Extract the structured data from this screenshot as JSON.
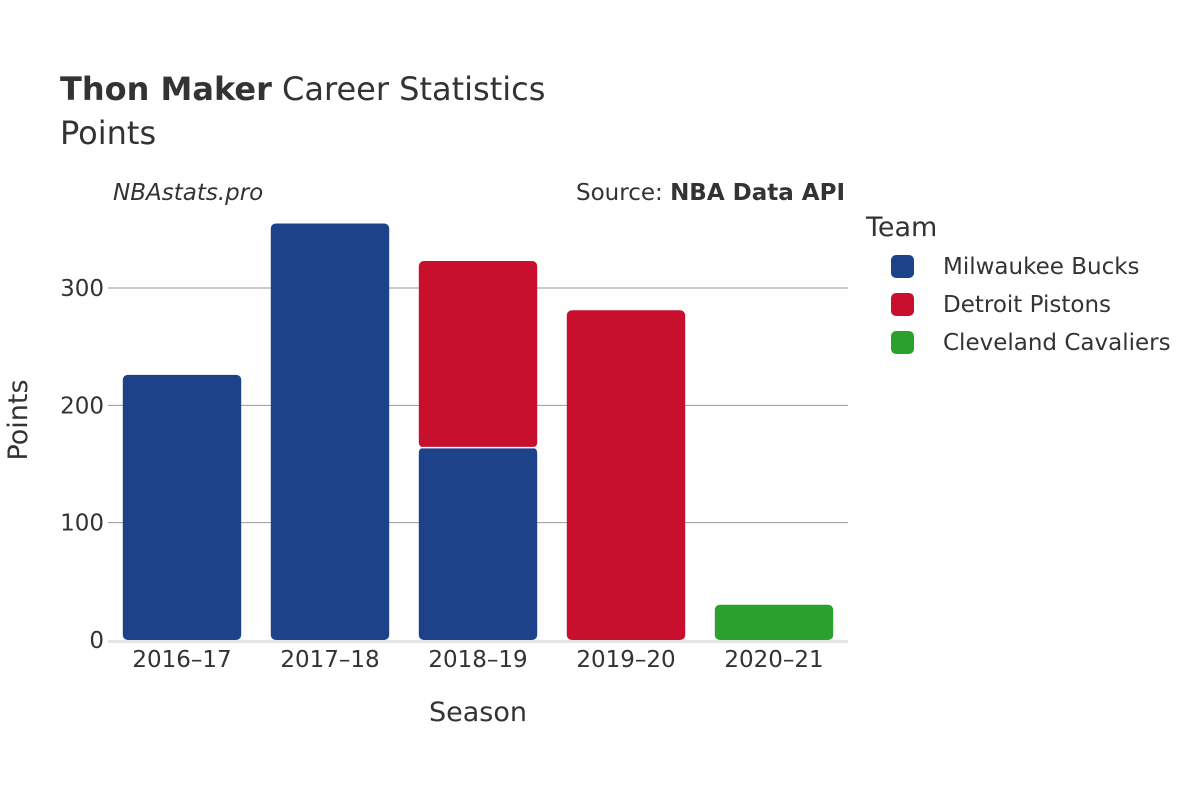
{
  "header": {
    "player_name": "Thon Maker",
    "title_rest": " Career Statistics",
    "subtitle": "Points",
    "watermark": "NBAstats.pro",
    "source_prefix": "Source: ",
    "source_name": "NBA Data API"
  },
  "legend": {
    "title": "Team",
    "placement": "right"
  },
  "chart_data": {
    "type": "bar",
    "stacked": true,
    "xlabel": "Season",
    "ylabel": "Points",
    "categories": [
      "2016–17",
      "2017–18",
      "2018–19",
      "2019–20",
      "2020–21"
    ],
    "ylim": [
      0,
      365
    ],
    "yticks": [
      0,
      100,
      200,
      300
    ],
    "grid": true,
    "series": [
      {
        "name": "Milwaukee Bucks",
        "color": "#1d428a",
        "values": [
          226,
          355,
          164,
          0,
          0
        ]
      },
      {
        "name": "Detroit Pistons",
        "color": "#c8102e",
        "values": [
          0,
          0,
          159,
          281,
          0
        ]
      },
      {
        "name": "Cleveland Cavaliers",
        "color": "#2ca02c",
        "values": [
          0,
          0,
          0,
          0,
          30
        ]
      }
    ]
  }
}
